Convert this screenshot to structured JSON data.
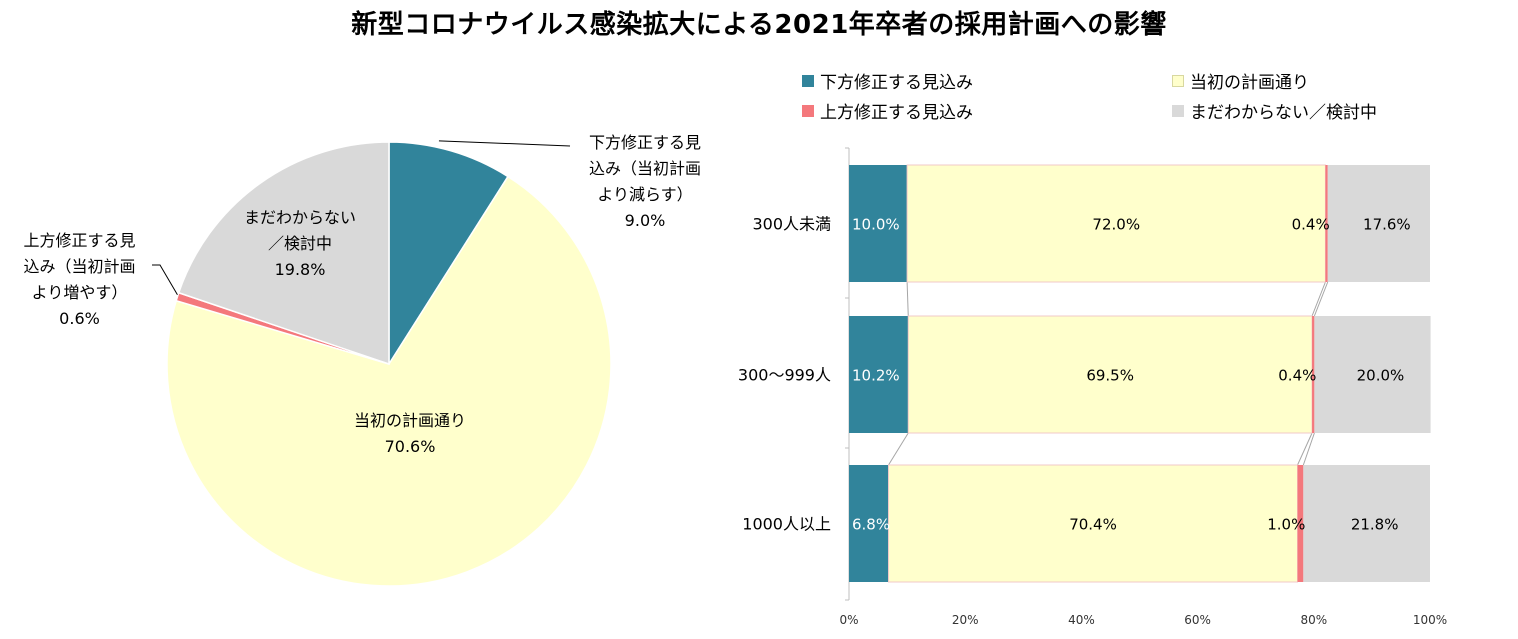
{
  "title": "新型コロナウイルス感染拡大による2021年卒者の採用計画への影響",
  "colors": {
    "down": "#31849B",
    "same": "#FFFFCC",
    "up": "#F4787C",
    "unknown": "#D9D9D9"
  },
  "legend": [
    {
      "label": "下方修正する見込み",
      "color": "#31849B"
    },
    {
      "label": "当初の計画通り",
      "color": "#FFFFCC"
    },
    {
      "label": "上方修正する見込み",
      "color": "#F4787C"
    },
    {
      "label": "まだわからない／検討中",
      "color": "#D9D9D9"
    }
  ],
  "pie_labels": {
    "down": {
      "lines": [
        "下方修正する見",
        "込み（当初計画",
        "より減らす）"
      ],
      "value": "9.0%"
    },
    "up": {
      "lines": [
        "上方修正する見",
        "込み（当初計画",
        "より増やす）"
      ],
      "value": "0.6%"
    },
    "unknown": {
      "lines": [
        "まだわからない",
        "／検討中"
      ],
      "value": "19.8%"
    },
    "same": {
      "lines": [
        "当初の計画通り"
      ],
      "value": "70.6%"
    }
  },
  "chart_data": [
    {
      "type": "pie",
      "categories": [
        "下方修正する見込み（当初計画より減らす）",
        "当初の計画通り",
        "上方修正する見込み（当初計画より増やす）",
        "まだわからない／検討中"
      ],
      "values": [
        9.0,
        70.6,
        0.6,
        19.8
      ],
      "unit": "%"
    },
    {
      "type": "bar",
      "orientation": "horizontal",
      "stacked": true,
      "categories": [
        "300人未満",
        "300〜999人",
        "1000人以上"
      ],
      "series": [
        {
          "name": "下方修正する見込み",
          "values": [
            10.0,
            10.2,
            6.8
          ],
          "labels": [
            "10.0%",
            "10.2%",
            "6.8%"
          ]
        },
        {
          "name": "当初の計画通り",
          "values": [
            72.0,
            69.5,
            70.4
          ],
          "labels": [
            "72.0%",
            "69.5%",
            "70.4%"
          ]
        },
        {
          "name": "上方修正する見込み",
          "values": [
            0.4,
            0.4,
            1.0
          ],
          "labels": [
            "0.4%",
            "0.4%",
            "1.0%"
          ]
        },
        {
          "name": "まだわからない／検討中",
          "values": [
            17.6,
            20.0,
            21.8
          ],
          "labels": [
            "17.6%",
            "20.0%",
            "21.8%"
          ]
        }
      ],
      "xlim": [
        0,
        100
      ],
      "xticks": [
        "0%",
        "20%",
        "40%",
        "60%",
        "80%",
        "100%"
      ],
      "legend_position": "top"
    }
  ]
}
